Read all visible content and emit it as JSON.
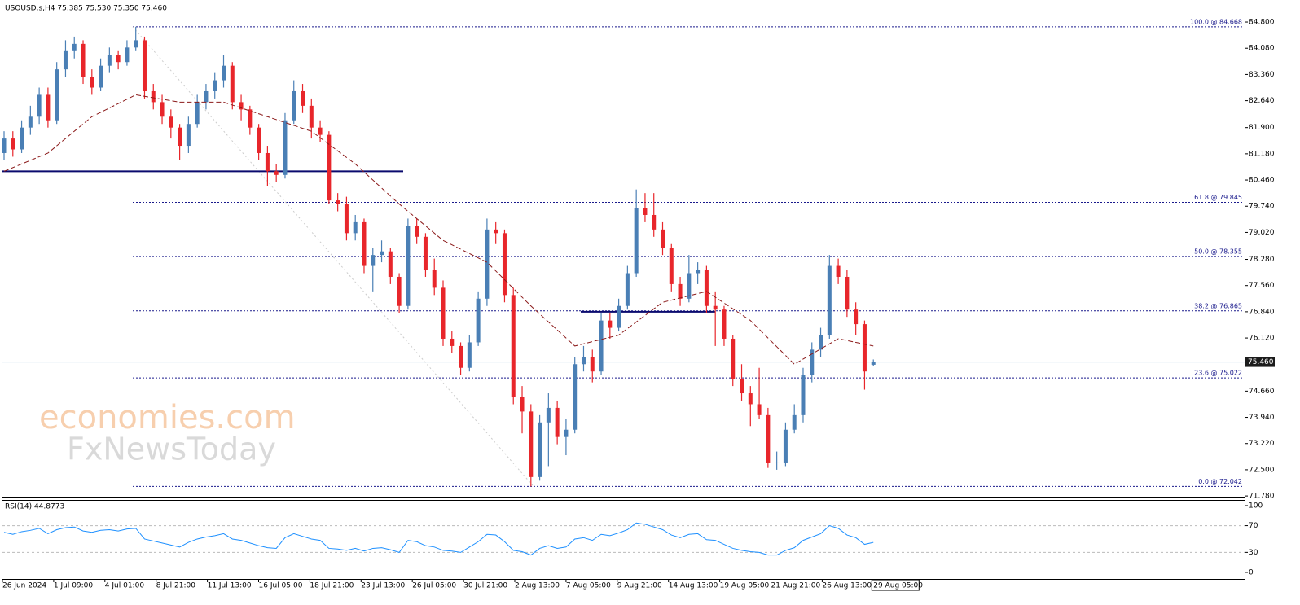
{
  "chart_data": {
    "type": "candlestick",
    "title": "USOUSD.s,H4  75.385 75.530 75.350 75.460",
    "up_color": "#4a7fb5",
    "down_color": "#e8262b",
    "candles": [
      [
        81.2,
        81.8,
        81.0,
        81.6
      ],
      [
        81.6,
        81.8,
        81.1,
        81.3
      ],
      [
        81.3,
        82.1,
        81.2,
        81.9
      ],
      [
        81.9,
        82.5,
        81.7,
        82.2
      ],
      [
        82.2,
        83.0,
        82.0,
        82.8
      ],
      [
        82.8,
        83.0,
        81.9,
        82.1
      ],
      [
        82.1,
        83.7,
        82.0,
        83.5
      ],
      [
        83.5,
        84.3,
        83.3,
        84.0
      ],
      [
        84.0,
        84.4,
        83.8,
        84.2
      ],
      [
        84.2,
        84.3,
        83.1,
        83.3
      ],
      [
        83.3,
        83.5,
        82.8,
        83.0
      ],
      [
        83.0,
        83.8,
        82.9,
        83.6
      ],
      [
        83.6,
        84.1,
        83.4,
        83.9
      ],
      [
        83.9,
        84.0,
        83.5,
        83.7
      ],
      [
        83.7,
        84.3,
        83.6,
        84.1
      ],
      [
        84.1,
        84.67,
        84.0,
        84.3
      ],
      [
        84.3,
        84.4,
        82.7,
        82.9
      ],
      [
        82.9,
        83.1,
        82.4,
        82.6
      ],
      [
        82.6,
        82.8,
        82.0,
        82.2
      ],
      [
        82.2,
        82.4,
        81.6,
        81.9
      ],
      [
        81.9,
        82.0,
        81.0,
        81.4
      ],
      [
        81.4,
        82.2,
        81.2,
        82.0
      ],
      [
        82.0,
        82.8,
        81.9,
        82.6
      ],
      [
        82.6,
        83.1,
        82.4,
        82.9
      ],
      [
        82.9,
        83.4,
        82.7,
        83.2
      ],
      [
        83.2,
        83.9,
        83.0,
        83.6
      ],
      [
        83.6,
        83.7,
        82.4,
        82.6
      ],
      [
        82.6,
        82.8,
        82.1,
        82.4
      ],
      [
        82.4,
        82.5,
        81.7,
        81.9
      ],
      [
        81.9,
        82.0,
        81.0,
        81.2
      ],
      [
        81.2,
        81.4,
        80.3,
        80.7
      ],
      [
        80.7,
        80.9,
        80.4,
        80.6
      ],
      [
        80.6,
        82.3,
        80.5,
        82.1
      ],
      [
        82.1,
        83.2,
        82.0,
        82.9
      ],
      [
        82.9,
        83.1,
        82.3,
        82.5
      ],
      [
        82.5,
        82.7,
        81.6,
        81.9
      ],
      [
        81.9,
        82.1,
        81.5,
        81.7
      ],
      [
        81.7,
        81.8,
        79.8,
        79.9
      ],
      [
        79.9,
        80.1,
        79.6,
        79.8
      ],
      [
        79.8,
        80.0,
        78.8,
        79.0
      ],
      [
        79.0,
        79.5,
        78.8,
        79.3
      ],
      [
        79.3,
        79.4,
        77.9,
        78.1
      ],
      [
        78.1,
        78.6,
        77.4,
        78.4
      ],
      [
        78.4,
        78.8,
        78.2,
        78.5
      ],
      [
        78.5,
        78.6,
        77.6,
        77.8
      ],
      [
        77.8,
        77.9,
        76.8,
        77.0
      ],
      [
        77.0,
        79.4,
        76.9,
        79.2
      ],
      [
        79.2,
        79.4,
        78.7,
        78.9
      ],
      [
        78.9,
        79.0,
        77.8,
        78.0
      ],
      [
        78.0,
        78.3,
        77.3,
        77.5
      ],
      [
        77.5,
        77.7,
        75.9,
        76.1
      ],
      [
        76.1,
        76.3,
        75.7,
        75.9
      ],
      [
        75.9,
        76.0,
        75.1,
        75.3
      ],
      [
        75.3,
        76.2,
        75.2,
        76.0
      ],
      [
        76.0,
        77.4,
        75.9,
        77.2
      ],
      [
        77.2,
        79.4,
        77.0,
        79.1
      ],
      [
        79.1,
        79.3,
        78.7,
        79.0
      ],
      [
        79.0,
        79.1,
        77.1,
        77.3
      ],
      [
        77.3,
        77.5,
        74.3,
        74.5
      ],
      [
        74.5,
        74.8,
        73.5,
        74.1
      ],
      [
        74.1,
        74.3,
        72.04,
        72.3
      ],
      [
        72.3,
        74.0,
        72.2,
        73.8
      ],
      [
        73.8,
        74.6,
        72.6,
        74.2
      ],
      [
        74.2,
        74.4,
        73.2,
        73.4
      ],
      [
        73.4,
        73.9,
        72.9,
        73.6
      ],
      [
        73.6,
        75.6,
        73.5,
        75.4
      ],
      [
        75.4,
        75.9,
        75.2,
        75.6
      ],
      [
        75.6,
        75.8,
        74.9,
        75.2
      ],
      [
        75.2,
        76.8,
        75.1,
        76.6
      ],
      [
        76.6,
        76.8,
        76.1,
        76.4
      ],
      [
        76.4,
        77.2,
        76.3,
        77.0
      ],
      [
        77.0,
        78.1,
        76.9,
        77.9
      ],
      [
        77.9,
        80.2,
        77.8,
        79.7
      ],
      [
        79.7,
        80.1,
        79.3,
        79.5
      ],
      [
        79.5,
        80.1,
        78.9,
        79.1
      ],
      [
        79.1,
        79.3,
        78.4,
        78.6
      ],
      [
        78.6,
        78.7,
        77.4,
        77.6
      ],
      [
        77.6,
        77.8,
        77.0,
        77.2
      ],
      [
        77.2,
        78.4,
        77.1,
        77.9
      ],
      [
        77.9,
        78.2,
        77.6,
        78.0
      ],
      [
        78.0,
        78.1,
        76.8,
        77.0
      ],
      [
        77.0,
        77.4,
        75.9,
        76.9
      ],
      [
        76.9,
        77.0,
        75.9,
        76.1
      ],
      [
        76.1,
        76.2,
        74.8,
        75.0
      ],
      [
        75.0,
        75.4,
        74.4,
        74.6
      ],
      [
        74.6,
        74.8,
        73.7,
        74.3
      ],
      [
        74.3,
        75.3,
        73.9,
        74.0
      ],
      [
        74.0,
        74.2,
        72.55,
        72.7
      ],
      [
        72.7,
        73.0,
        72.5,
        72.7
      ],
      [
        72.7,
        73.8,
        72.6,
        73.6
      ],
      [
        73.6,
        74.3,
        73.5,
        74.0
      ],
      [
        74.0,
        75.3,
        73.8,
        75.1
      ],
      [
        75.1,
        76.0,
        74.9,
        75.8
      ],
      [
        75.8,
        76.4,
        75.6,
        76.2
      ],
      [
        76.2,
        78.4,
        76.1,
        78.1
      ],
      [
        78.1,
        78.3,
        77.6,
        77.8
      ],
      [
        77.8,
        78.0,
        76.7,
        76.9
      ],
      [
        76.9,
        77.1,
        76.2,
        76.5
      ],
      [
        76.5,
        76.6,
        74.7,
        75.2
      ],
      [
        75.385,
        75.53,
        75.35,
        75.46
      ]
    ],
    "ma": {
      "color": "#8b1a1a",
      "x": [
        0,
        5,
        10,
        15,
        20,
        25,
        30,
        35,
        40,
        45,
        50,
        55,
        60,
        65,
        70,
        75,
        80,
        85,
        90,
        95,
        99
      ],
      "values": [
        80.7,
        81.2,
        82.2,
        82.8,
        82.6,
        82.6,
        82.2,
        81.8,
        80.9,
        79.8,
        78.8,
        78.2,
        77.0,
        75.9,
        76.2,
        77.1,
        77.4,
        76.6,
        75.4,
        76.1,
        75.9
      ]
    },
    "ylim": [
      71.76,
      85.36
    ],
    "yticks": [
      {
        "value": 84.8,
        "label": "84.800"
      },
      {
        "value": 84.08,
        "label": "84.080"
      },
      {
        "value": 83.36,
        "label": "83.360"
      },
      {
        "value": 82.64,
        "label": "82.640"
      },
      {
        "value": 81.9,
        "label": "81.900"
      },
      {
        "value": 81.18,
        "label": "81.180"
      },
      {
        "value": 80.46,
        "label": "80.460"
      },
      {
        "value": 79.74,
        "label": "79.740"
      },
      {
        "value": 79.02,
        "label": "79.020"
      },
      {
        "value": 78.28,
        "label": "78.280"
      },
      {
        "value": 77.56,
        "label": "77.560"
      },
      {
        "value": 76.84,
        "label": "76.840"
      },
      {
        "value": 76.12,
        "label": "76.120"
      },
      {
        "value": 74.66,
        "label": "74.660"
      },
      {
        "value": 73.94,
        "label": "73.940"
      },
      {
        "value": 73.22,
        "label": "73.220"
      },
      {
        "value": 72.5,
        "label": "72.500"
      },
      {
        "value": 71.78,
        "label": "71.780"
      }
    ],
    "last_price": {
      "value": 75.46,
      "label": "75.460"
    },
    "fib_levels": [
      {
        "value": 84.668,
        "label": "100.0 @ 84.668"
      },
      {
        "value": 79.845,
        "label": "61.8 @ 79.845"
      },
      {
        "value": 78.355,
        "label": "50.0 @ 78.355"
      },
      {
        "value": 76.865,
        "label": "38.2 @ 76.865"
      },
      {
        "value": 75.022,
        "label": "23.6 @ 75.022"
      },
      {
        "value": 72.042,
        "label": "0.0 @ 72.042"
      }
    ],
    "hlines": [
      80.7,
      76.84
    ],
    "x_labels": [
      "26 Jun 2024",
      "1 Jul 09:00",
      "4 Jul 01:00",
      "8 Jul 21:00",
      "11 Jul 13:00",
      "16 Jul 05:00",
      "18 Jul 21:00",
      "23 Jul 13:00",
      "26 Jul 05:00",
      "30 Jul 21:00",
      "2 Aug 13:00",
      "7 Aug 05:00",
      "9 Aug 21:00",
      "14 Aug 13:00",
      "19 Aug 05:00",
      "21 Aug 21:00",
      "26 Aug 13:00",
      "29 Aug 05:00"
    ],
    "watermark": [
      "economies.com",
      "FxNewsToday"
    ],
    "rsi": {
      "title": "RSI(14) 44.8773",
      "color": "#1e90ff",
      "ylim": [
        -9.8,
        108.5
      ],
      "yticks": [
        100,
        70,
        30,
        0
      ],
      "values": [
        60,
        57,
        61,
        63,
        66,
        58,
        64,
        67,
        68,
        62,
        60,
        63,
        64,
        62,
        65,
        66,
        50,
        47,
        44,
        41,
        38,
        45,
        50,
        53,
        55,
        58,
        50,
        48,
        44,
        40,
        37,
        36,
        52,
        58,
        54,
        50,
        48,
        36,
        35,
        33,
        36,
        32,
        36,
        37,
        34,
        30,
        48,
        46,
        40,
        38,
        33,
        32,
        30,
        38,
        46,
        57,
        56,
        46,
        33,
        31,
        26,
        36,
        40,
        36,
        38,
        50,
        52,
        48,
        57,
        55,
        59,
        64,
        74,
        72,
        68,
        64,
        56,
        52,
        57,
        58,
        49,
        48,
        42,
        36,
        33,
        31,
        30,
        26,
        26,
        33,
        37,
        48,
        53,
        58,
        70,
        66,
        56,
        52,
        42,
        44.8773
      ]
    }
  }
}
